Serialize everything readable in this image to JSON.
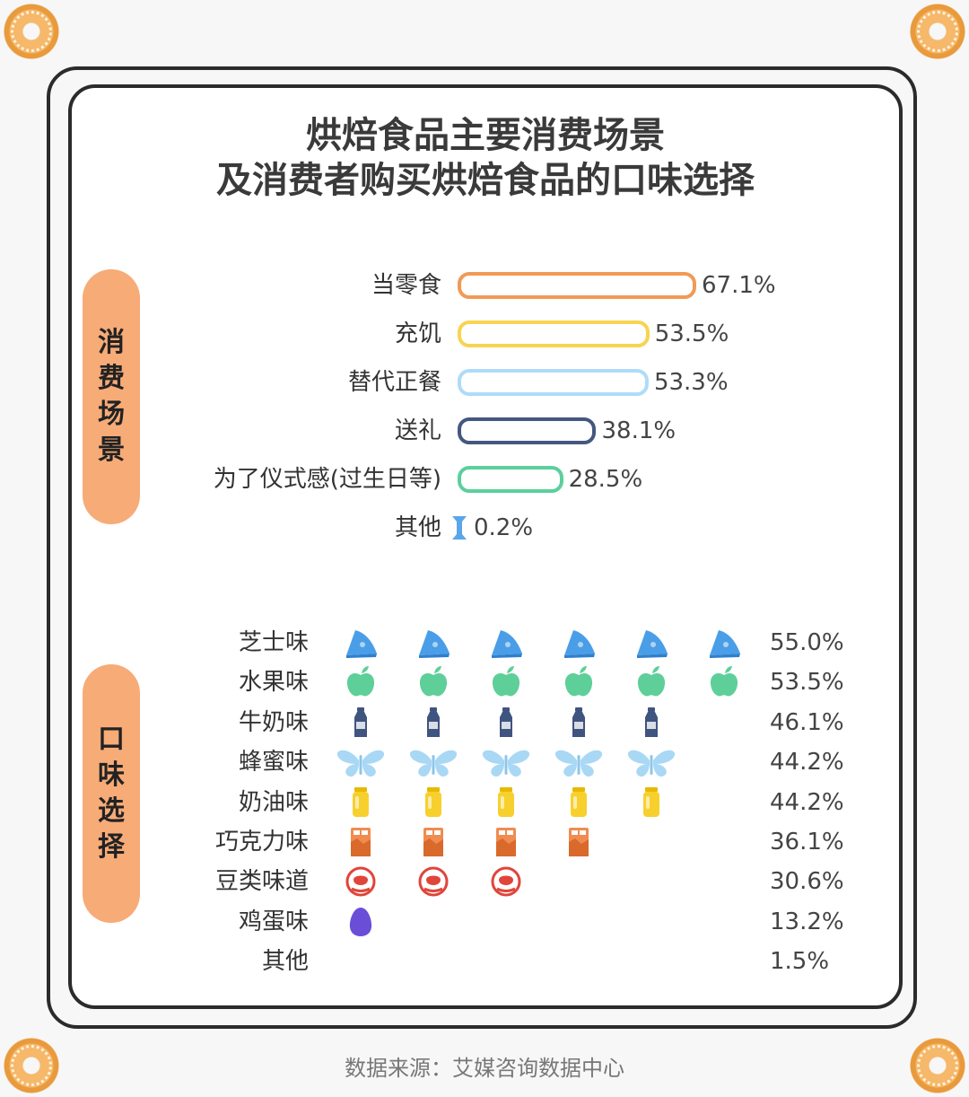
{
  "title_line1": "烘焙食品主要消费场景",
  "title_line2": "及消费者购买烘焙食品的口味选择",
  "section_scenes": [
    "消",
    "费",
    "场",
    "景"
  ],
  "section_flavors": [
    "口",
    "味",
    "选",
    "择"
  ],
  "footer": "数据来源：艾媒咨询数据中心",
  "chart_data": [
    {
      "type": "bar",
      "orientation": "horizontal",
      "categories": [
        "当零食",
        "充饥",
        "替代正餐",
        "送礼",
        "为了仪式感(过生日等)",
        "其他"
      ],
      "values": [
        67.1,
        53.5,
        53.3,
        38.1,
        28.5,
        0.2
      ],
      "value_labels": [
        "67.1%",
        "53.5%",
        "53.3%",
        "38.1%",
        "28.5%",
        "0.2%"
      ],
      "colors": [
        "#f19a55",
        "#f7d451",
        "#aedcf8",
        "#44577f",
        "#5bcf9d",
        "#5aa6ea"
      ]
    },
    {
      "type": "pictograph",
      "categories": [
        "芝士味",
        "水果味",
        "牛奶味",
        "蜂蜜味",
        "奶油味",
        "巧克力味",
        "豆类味道",
        "鸡蛋味",
        "其他"
      ],
      "values": [
        55.0,
        53.5,
        46.1,
        44.2,
        44.2,
        36.1,
        30.6,
        13.2,
        1.5
      ],
      "value_labels": [
        "55.0%",
        "53.5%",
        "46.1%",
        "44.2%",
        "44.2%",
        "36.1%",
        "30.6%",
        "13.2%",
        "1.5%"
      ],
      "icons": [
        "cheese-icon",
        "apple-icon",
        "milk-bottle-icon",
        "butterfly-icon",
        "cream-jar-icon",
        "chocolate-icon",
        "bean-icon",
        "egg-icon",
        "none"
      ],
      "icon_counts": [
        6,
        6,
        5,
        5,
        5,
        4,
        3,
        1,
        0
      ],
      "colors": {
        "cheese": "#4a9ee8",
        "apple": "#5ecf98",
        "milk": "#405480",
        "butterfly": "#a9d8f5",
        "cream": "#f7d02e",
        "chocolate": "#f08c50",
        "bean": "#e0453a",
        "egg": "#6a4ed8"
      }
    }
  ]
}
